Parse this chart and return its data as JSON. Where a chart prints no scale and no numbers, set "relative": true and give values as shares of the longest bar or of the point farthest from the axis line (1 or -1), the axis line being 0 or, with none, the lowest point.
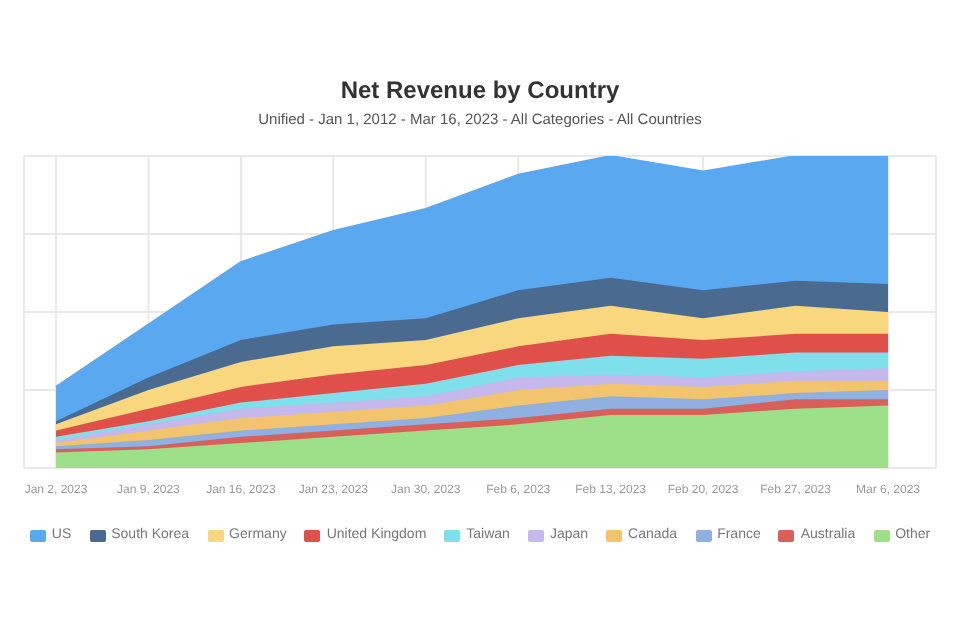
{
  "chart_data": {
    "type": "area",
    "title": "Net Revenue by Country",
    "subtitle": "Unified - Jan 1, 2012 - Mar 16, 2023 - All Categories - All Countries",
    "relative": true,
    "stacked": true,
    "grid": true,
    "legend": "bottom",
    "categories": [
      "Jan 2, 2023",
      "Jan 9, 2023",
      "Jan 16, 2023",
      "Jan 23, 2023",
      "Jan 30, 2023",
      "Feb 6, 2023",
      "Feb 13, 2023",
      "Feb 20, 2023",
      "Feb 27, 2023",
      "Mar 6, 2023"
    ],
    "series": [
      {
        "name": "Other",
        "color": "#9ee08a",
        "values": [
          0.05,
          0.06,
          0.08,
          0.1,
          0.12,
          0.14,
          0.17,
          0.17,
          0.19,
          0.2
        ]
      },
      {
        "name": "Australia",
        "color": "#d9605a",
        "values": [
          0.01,
          0.01,
          0.02,
          0.02,
          0.02,
          0.02,
          0.02,
          0.02,
          0.03,
          0.02
        ]
      },
      {
        "name": "France",
        "color": "#8fb0e0",
        "values": [
          0.01,
          0.02,
          0.02,
          0.02,
          0.02,
          0.04,
          0.04,
          0.03,
          0.02,
          0.03
        ]
      },
      {
        "name": "Canada",
        "color": "#f2c46e",
        "values": [
          0.01,
          0.03,
          0.04,
          0.04,
          0.04,
          0.05,
          0.04,
          0.04,
          0.04,
          0.03
        ]
      },
      {
        "name": "Japan",
        "color": "#c4b8ec",
        "values": [
          0.01,
          0.02,
          0.03,
          0.03,
          0.03,
          0.04,
          0.03,
          0.03,
          0.03,
          0.04
        ]
      },
      {
        "name": "Taiwan",
        "color": "#7fe0ec",
        "values": [
          0.01,
          0.01,
          0.02,
          0.03,
          0.04,
          0.04,
          0.06,
          0.06,
          0.06,
          0.05
        ]
      },
      {
        "name": "United Kingdom",
        "color": "#e0504a",
        "values": [
          0.02,
          0.04,
          0.05,
          0.06,
          0.06,
          0.06,
          0.07,
          0.06,
          0.06,
          0.06
        ]
      },
      {
        "name": "Germany",
        "color": "#f9d77e",
        "values": [
          0.02,
          0.06,
          0.08,
          0.09,
          0.08,
          0.09,
          0.09,
          0.07,
          0.09,
          0.07
        ]
      },
      {
        "name": "South Korea",
        "color": "#4a6a8f",
        "values": [
          0.01,
          0.04,
          0.07,
          0.07,
          0.07,
          0.09,
          0.09,
          0.09,
          0.08,
          0.09
        ]
      },
      {
        "name": "US",
        "color": "#5aa8f0",
        "values": [
          0.11,
          0.17,
          0.25,
          0.3,
          0.35,
          0.37,
          0.39,
          0.38,
          0.4,
          0.41
        ]
      }
    ]
  }
}
